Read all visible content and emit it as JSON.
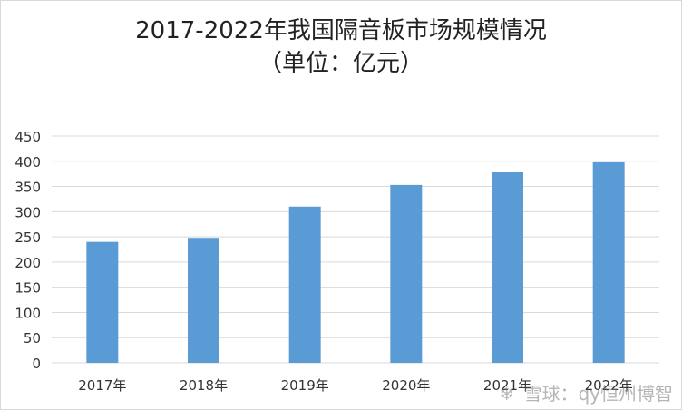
{
  "chart_data": {
    "type": "bar",
    "title": "2017-2022年我国隔音板市场规模情况",
    "subtitle": "（单位：亿元）",
    "categories": [
      "2017年",
      "2018年",
      "2019年",
      "2020年",
      "2021年",
      "2022年"
    ],
    "values": [
      240,
      248,
      310,
      353,
      378,
      398
    ],
    "yticks": [
      0,
      50,
      100,
      150,
      200,
      250,
      300,
      350,
      400,
      450
    ],
    "ylim": [
      0,
      450
    ],
    "grid": true,
    "legend": "none",
    "bar_color": "#5b9bd5",
    "grid_color": "#d9d9d9"
  },
  "watermark": {
    "text": "雪球：qy恒州博智",
    "icon": "snowball-icon"
  }
}
